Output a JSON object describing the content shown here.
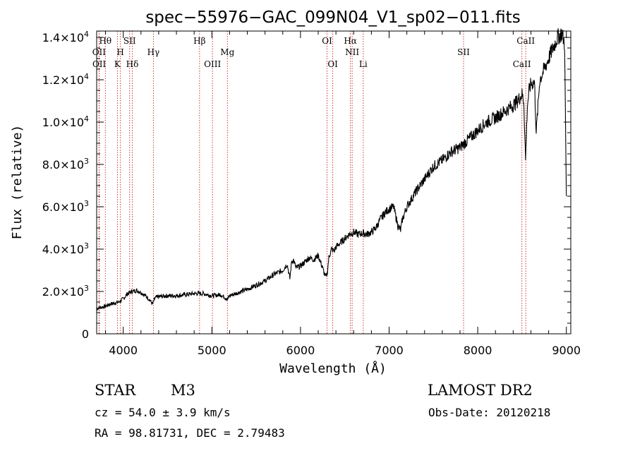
{
  "chart_data": {
    "type": "line",
    "title": "spec−55976−GAC_099N04_V1_sp02−011.fits",
    "xlabel": "Wavelength (Å)",
    "ylabel": "Flux (relative)",
    "xlim": [
      3700,
      9050
    ],
    "ylim": [
      0,
      14300
    ],
    "x_ticks": [
      {
        "value": 4000,
        "label": "4000"
      },
      {
        "value": 5000,
        "label": "5000"
      },
      {
        "value": 6000,
        "label": "6000"
      },
      {
        "value": 7000,
        "label": "7000"
      },
      {
        "value": 8000,
        "label": "8000"
      },
      {
        "value": 9000,
        "label": "9000"
      }
    ],
    "y_ticks": [
      {
        "value": 0,
        "mant": "0",
        "exp": ""
      },
      {
        "value": 2000,
        "mant": "2.0×10",
        "exp": "3"
      },
      {
        "value": 4000,
        "mant": "4.0×10",
        "exp": "3"
      },
      {
        "value": 6000,
        "mant": "6.0×10",
        "exp": "3"
      },
      {
        "value": 8000,
        "mant": "8.0×10",
        "exp": "3"
      },
      {
        "value": 10000,
        "mant": "1.0×10",
        "exp": "4"
      },
      {
        "value": 12000,
        "mant": "1.2×10",
        "exp": "4"
      },
      {
        "value": 14000,
        "mant": "1.4×10",
        "exp": "4"
      }
    ],
    "spectral_lines": [
      {
        "label": "Hθ",
        "wavelength": 3798,
        "row": 0
      },
      {
        "label": "OII",
        "wavelength": 3727,
        "row": 1
      },
      {
        "label": "OII",
        "wavelength": 3729,
        "row": 2
      },
      {
        "label": "H",
        "wavelength": 3968,
        "row": 1
      },
      {
        "label": "K",
        "wavelength": 3934,
        "row": 2
      },
      {
        "label": "SII",
        "wavelength": 4072,
        "row": 0
      },
      {
        "label": "Hδ",
        "wavelength": 4102,
        "row": 2
      },
      {
        "label": "Hγ",
        "wavelength": 4340,
        "row": 1
      },
      {
        "label": "Hβ",
        "wavelength": 4861,
        "row": 0
      },
      {
        "label": "OIII",
        "wavelength": 5007,
        "row": 2
      },
      {
        "label": "Mg",
        "wavelength": 5175,
        "row": 1
      },
      {
        "label": "OI",
        "wavelength": 6300,
        "row": 0
      },
      {
        "label": "OI",
        "wavelength": 6364,
        "row": 2
      },
      {
        "label": "Hα",
        "wavelength": 6563,
        "row": 0
      },
      {
        "label": "NII",
        "wavelength": 6583,
        "row": 1
      },
      {
        "label": "Li",
        "wavelength": 6708,
        "row": 2
      },
      {
        "label": "SII",
        "wavelength": 7840,
        "row": 1
      },
      {
        "label": "CaII",
        "wavelength": 8542,
        "row": 0
      },
      {
        "label": "CaII",
        "wavelength": 8498,
        "row": 2
      }
    ],
    "spectrum": {
      "x": [
        3700,
        3750,
        3800,
        3850,
        3900,
        3950,
        4000,
        4050,
        4100,
        4150,
        4200,
        4250,
        4300,
        4330,
        4360,
        4400,
        4500,
        4600,
        4700,
        4800,
        4900,
        5000,
        5100,
        5150,
        5180,
        5200,
        5300,
        5400,
        5500,
        5600,
        5700,
        5800,
        5850,
        5880,
        5900,
        5920,
        5950,
        6000,
        6050,
        6100,
        6150,
        6200,
        6250,
        6280,
        6300,
        6320,
        6350,
        6380,
        6400,
        6450,
        6500,
        6550,
        6600,
        6650,
        6700,
        6750,
        6800,
        6850,
        6900,
        6950,
        7000,
        7050,
        7100,
        7130,
        7150,
        7200,
        7300,
        7400,
        7500,
        7600,
        7700,
        7800,
        7900,
        8000,
        8100,
        8200,
        8300,
        8400,
        8450,
        8480,
        8500,
        8520,
        8540,
        8560,
        8580,
        8600,
        8640,
        8660,
        8700,
        8750,
        8800,
        8850,
        8900,
        8950,
        8980,
        9000
      ],
      "y": [
        1200,
        1250,
        1300,
        1400,
        1450,
        1500,
        1650,
        1900,
        2000,
        2050,
        1950,
        1800,
        1600,
        1400,
        1700,
        1750,
        1800,
        1800,
        1850,
        1900,
        1900,
        1800,
        1850,
        1700,
        1650,
        1800,
        1950,
        2100,
        2300,
        2500,
        2800,
        3000,
        3300,
        2600,
        3400,
        3500,
        3100,
        3200,
        3400,
        3600,
        3500,
        3700,
        3100,
        2700,
        2800,
        3600,
        4000,
        3900,
        4100,
        4300,
        4500,
        4700,
        4800,
        4700,
        4750,
        4700,
        4800,
        5000,
        5400,
        5700,
        5900,
        6000,
        5100,
        4900,
        5400,
        6000,
        6700,
        7300,
        7900,
        8200,
        8600,
        8800,
        9200,
        9600,
        10000,
        10200,
        10500,
        10800,
        11000,
        11200,
        11300,
        11000,
        8200,
        10800,
        11500,
        11800,
        11900,
        9500,
        12000,
        12500,
        13000,
        13500,
        14000,
        14200,
        13700,
        6500
      ]
    }
  },
  "footer": {
    "object_class": "STAR",
    "subclass": "M3",
    "catalog": "LAMOST DR2",
    "redshift": "cz =  54.0 ±  3.9 km/s",
    "obs_date": "Obs-Date: 20120218",
    "coords": "RA =   98.81731, DEC =    2.79483"
  }
}
